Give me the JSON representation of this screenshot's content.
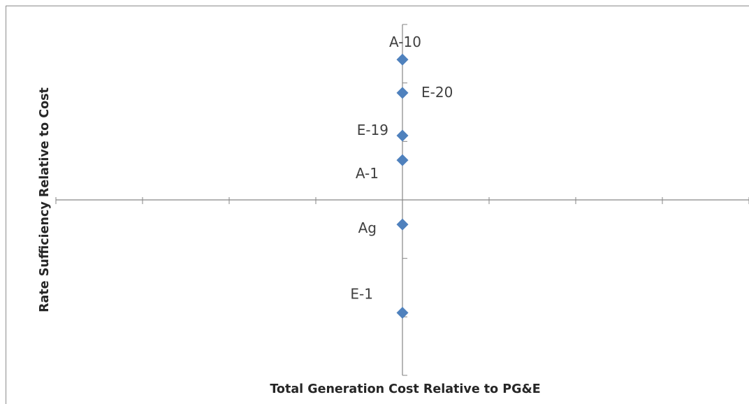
{
  "chart_data": {
    "type": "scatter",
    "title": "",
    "xlabel": "Total Generation Cost Relative to PG&E",
    "ylabel": "Rate Sufficiency Relative to Cost",
    "xlim": [
      -4,
      4
    ],
    "ylim": [
      -3,
      3
    ],
    "grid": false,
    "legend": "none",
    "marker": "diamond",
    "color": "#4f81bd",
    "points": [
      {
        "label": "A-10",
        "x": 0,
        "y": 2.4
      },
      {
        "label": "E-20",
        "x": 0,
        "y": 1.83
      },
      {
        "label": "E-19",
        "x": 0,
        "y": 1.1
      },
      {
        "label": "A-1",
        "x": 0,
        "y": 0.68
      },
      {
        "label": "Ag",
        "x": 0,
        "y": -0.42
      },
      {
        "label": "E-1",
        "x": 0,
        "y": -1.93
      }
    ]
  }
}
